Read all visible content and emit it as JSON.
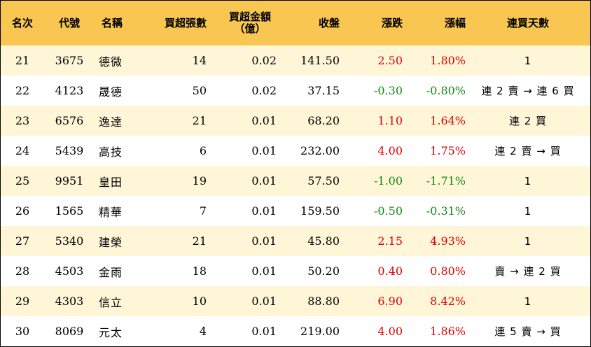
{
  "headers": {
    "rank": "名次",
    "code": "代號",
    "name": "名稱",
    "lots": "買超張數",
    "amount_line1": "買超金額",
    "amount_line2": "（億）",
    "close": "收盤",
    "change": "漲跌",
    "pct": "漲幅",
    "streak": "連買天數"
  },
  "colors": {
    "header_bg": "#f8c651",
    "stripe_bg": "#fff6d8",
    "up": "#e00000",
    "down": "#118a11"
  },
  "rows": [
    {
      "rank": "21",
      "code": "3675",
      "name": "德微",
      "lots": "14",
      "amount": "0.02",
      "close": "141.50",
      "change": "2.50",
      "pct": "1.80%",
      "dir": "up",
      "streak": "1"
    },
    {
      "rank": "22",
      "code": "4123",
      "name": "晟德",
      "lots": "50",
      "amount": "0.02",
      "close": "37.15",
      "change": "-0.30",
      "pct": "-0.80%",
      "dir": "down",
      "streak": "連 2 賣 → 連 6 買"
    },
    {
      "rank": "23",
      "code": "6576",
      "name": "逸達",
      "lots": "21",
      "amount": "0.01",
      "close": "68.20",
      "change": "1.10",
      "pct": "1.64%",
      "dir": "up",
      "streak": "連 2 買"
    },
    {
      "rank": "24",
      "code": "5439",
      "name": "高技",
      "lots": "6",
      "amount": "0.01",
      "close": "232.00",
      "change": "4.00",
      "pct": "1.75%",
      "dir": "up",
      "streak": "連 2 賣 → 買"
    },
    {
      "rank": "25",
      "code": "9951",
      "name": "皇田",
      "lots": "19",
      "amount": "0.01",
      "close": "57.50",
      "change": "-1.00",
      "pct": "-1.71%",
      "dir": "down",
      "streak": "1"
    },
    {
      "rank": "26",
      "code": "1565",
      "name": "精華",
      "lots": "7",
      "amount": "0.01",
      "close": "159.50",
      "change": "-0.50",
      "pct": "-0.31%",
      "dir": "down",
      "streak": "1"
    },
    {
      "rank": "27",
      "code": "5340",
      "name": "建榮",
      "lots": "21",
      "amount": "0.01",
      "close": "45.80",
      "change": "2.15",
      "pct": "4.93%",
      "dir": "up",
      "streak": "1"
    },
    {
      "rank": "28",
      "code": "4503",
      "name": "金雨",
      "lots": "18",
      "amount": "0.01",
      "close": "50.20",
      "change": "0.40",
      "pct": "0.80%",
      "dir": "up",
      "streak": "賣 → 連 2 買"
    },
    {
      "rank": "29",
      "code": "4303",
      "name": "信立",
      "lots": "10",
      "amount": "0.01",
      "close": "88.80",
      "change": "6.90",
      "pct": "8.42%",
      "dir": "up",
      "streak": "1"
    },
    {
      "rank": "30",
      "code": "8069",
      "name": "元太",
      "lots": "4",
      "amount": "0.01",
      "close": "219.00",
      "change": "4.00",
      "pct": "1.86%",
      "dir": "up",
      "streak": "連 5 賣 → 買"
    }
  ]
}
